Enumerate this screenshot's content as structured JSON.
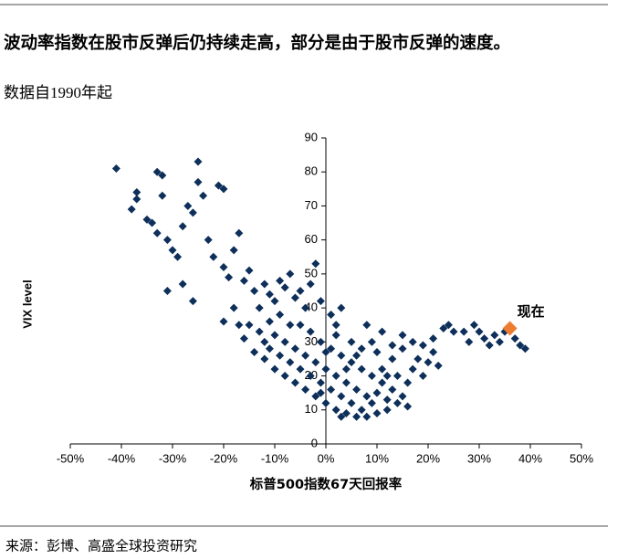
{
  "chart_data": {
    "type": "scatter",
    "title": "波动率指数在股市反弹后仍持续走高，部分是由于股市反弹的速度。",
    "subtitle": "数据自1990年起",
    "x_label": "标普500指数67天回报率",
    "y_label": "VIX level",
    "source": "来源：彭博、高盛全球投资研究",
    "color": "#0d2f5a",
    "x": [
      -41,
      -37,
      -37,
      -38,
      -35,
      -33,
      -32,
      -32,
      -33,
      -34,
      -31,
      -30,
      -29,
      -28,
      -27,
      -26,
      -25,
      -25,
      -24,
      -23,
      -22,
      -21,
      -20,
      -20,
      -19,
      -18,
      -17,
      -16,
      -15,
      -31,
      -28,
      -26,
      -18,
      -20,
      -14,
      -13,
      -12,
      -11,
      -10,
      -9,
      -8,
      -7,
      -6,
      -5,
      -3,
      -2,
      -4,
      -1,
      1,
      3,
      2,
      -15,
      -13,
      -12,
      -11,
      -10,
      -9,
      -8,
      -7,
      -6,
      -5,
      -4,
      -3,
      -2,
      -1,
      0,
      1,
      2,
      3,
      4,
      5,
      6,
      7,
      8,
      9,
      10,
      11,
      12,
      13,
      14,
      15,
      16,
      17,
      18,
      19,
      20,
      21,
      22,
      6,
      4,
      2,
      0,
      -2,
      -4,
      -6,
      -8,
      -10,
      -12,
      -14,
      -16,
      -17,
      -5,
      -3,
      -1,
      1,
      3,
      5,
      7,
      9,
      11,
      13,
      15,
      5,
      7,
      9,
      11,
      13,
      15,
      17,
      8,
      10,
      12,
      14,
      16,
      10,
      8,
      12,
      3,
      -1,
      0,
      2,
      4,
      6,
      -7,
      -9,
      -11,
      19,
      21,
      23,
      24,
      25,
      29,
      30,
      31,
      32,
      33,
      34,
      35,
      37,
      38,
      39,
      28,
      27
    ],
    "values": [
      81,
      74,
      72,
      69,
      66,
      80,
      79,
      73,
      62,
      65,
      60,
      57,
      55,
      64,
      70,
      68,
      83,
      77,
      73,
      60,
      55,
      76,
      75,
      52,
      49,
      57,
      62,
      48,
      51,
      45,
      47,
      42,
      40,
      36,
      45,
      40,
      47,
      44,
      42,
      48,
      46,
      50,
      43,
      45,
      47,
      53,
      40,
      42,
      38,
      40,
      35,
      35,
      33,
      30,
      28,
      32,
      26,
      30,
      24,
      28,
      22,
      26,
      20,
      24,
      18,
      22,
      16,
      20,
      14,
      18,
      12,
      16,
      10,
      14,
      12,
      15,
      18,
      13,
      16,
      20,
      14,
      18,
      22,
      25,
      20,
      24,
      27,
      23,
      8,
      9,
      10,
      12,
      14,
      16,
      18,
      20,
      22,
      25,
      27,
      31,
      35,
      35,
      33,
      30,
      28,
      26,
      24,
      22,
      20,
      22,
      25,
      28,
      30,
      28,
      30,
      33,
      29,
      32,
      30,
      35,
      27,
      20,
      12,
      11,
      9,
      8,
      10,
      8,
      15,
      27,
      32,
      22,
      26,
      35,
      38,
      36,
      29,
      31,
      34,
      35,
      33,
      35,
      33,
      31,
      29,
      32,
      30,
      33,
      31,
      29,
      28,
      30,
      33
    ],
    "xlim": [
      -50,
      50
    ],
    "xticks": [
      {
        "value": -50,
        "label": "-50%"
      },
      {
        "value": -40,
        "label": "-40%"
      },
      {
        "value": -30,
        "label": "-30%"
      },
      {
        "value": -20,
        "label": "-20%"
      },
      {
        "value": -10,
        "label": "-10%"
      },
      {
        "value": 0,
        "label": "0%"
      },
      {
        "value": 10,
        "label": "10%"
      },
      {
        "value": 20,
        "label": "20%"
      },
      {
        "value": 30,
        "label": "30%"
      },
      {
        "value": 40,
        "label": "40%"
      },
      {
        "value": 50,
        "label": "50%"
      }
    ],
    "ylim": [
      0,
      90
    ],
    "yticks": [
      0,
      10,
      20,
      30,
      40,
      50,
      60,
      70,
      80,
      90
    ],
    "annotations": [
      {
        "text": "现在",
        "x": 36,
        "y": 34,
        "color": "#ed7d31"
      }
    ]
  }
}
